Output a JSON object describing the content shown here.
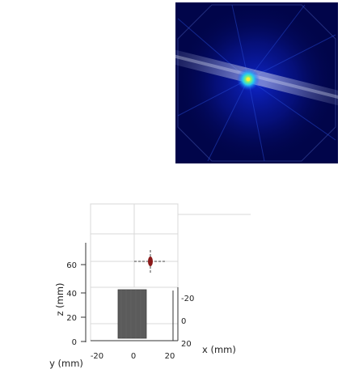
{
  "heatmap": {
    "colormap": "jet",
    "background_color": "#01054a",
    "hotspot_color": "#f7f03a"
  },
  "plot3d": {
    "z_axis": {
      "label": "z (mm)",
      "ticks": [
        "0",
        "20",
        "40",
        "60"
      ]
    },
    "x_axis": {
      "label": "x (mm)",
      "ticks": [
        "-20",
        "0",
        "20"
      ]
    },
    "y_axis": {
      "label": "y (mm)",
      "ticks": [
        "-20",
        "0",
        "20"
      ]
    },
    "block_color": "#5b5b5b",
    "marker_color": "#8b1a1a"
  }
}
